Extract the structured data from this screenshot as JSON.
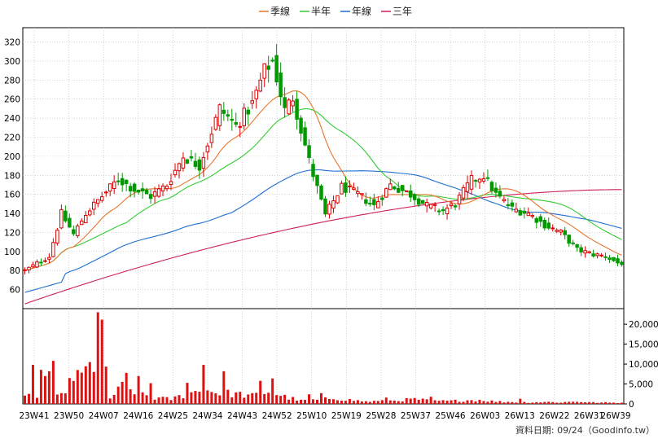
{
  "chart_data": {
    "type": "candlestick",
    "legend": {
      "placement": "top-center",
      "items": [
        {
          "name": "季線",
          "color": "#e8762c"
        },
        {
          "name": "半年",
          "color": "#33cc33"
        },
        {
          "name": "年線",
          "color": "#1f6fd1"
        },
        {
          "name": "三年",
          "color": "#cc1f5c"
        }
      ]
    },
    "price_axis": {
      "min": 40,
      "max": 335,
      "ticks": [
        60,
        80,
        100,
        120,
        140,
        160,
        180,
        200,
        220,
        240,
        260,
        280,
        300,
        320
      ]
    },
    "volume_axis": {
      "min": 0,
      "max": 23500,
      "ticks": [
        0,
        5000,
        10000,
        15000,
        20000
      ],
      "tick_labels": [
        "0",
        "5,000",
        "10,000",
        "15,000",
        "20,000"
      ]
    },
    "x_labels": [
      "23W41",
      "23W50",
      "24W07",
      "24W16",
      "24W25",
      "24W34",
      "24W43",
      "24W52",
      "25W10",
      "25W19",
      "25W28",
      "25W37",
      "25W46",
      "26W03",
      "26W13",
      "26W22",
      "26W31",
      "26W39"
    ],
    "grid": true,
    "up_color": "#dd0000",
    "down_color": "#009900",
    "close_anchors": [
      [
        0,
        80
      ],
      [
        6,
        95
      ],
      [
        9,
        140
      ],
      [
        12,
        118
      ],
      [
        15,
        140
      ],
      [
        19,
        158
      ],
      [
        23,
        176
      ],
      [
        27,
        165
      ],
      [
        31,
        158
      ],
      [
        35,
        170
      ],
      [
        39,
        200
      ],
      [
        43,
        190
      ],
      [
        48,
        250
      ],
      [
        52,
        232
      ],
      [
        56,
        255
      ],
      [
        59,
        290
      ],
      [
        61,
        300
      ],
      [
        64,
        248
      ],
      [
        66,
        262
      ],
      [
        70,
        195
      ],
      [
        74,
        138
      ],
      [
        78,
        168
      ],
      [
        82,
        160
      ],
      [
        86,
        148
      ],
      [
        90,
        170
      ],
      [
        95,
        160
      ],
      [
        99,
        148
      ],
      [
        103,
        143
      ],
      [
        106,
        150
      ],
      [
        110,
        175
      ],
      [
        113,
        180
      ],
      [
        116,
        160
      ],
      [
        120,
        145
      ],
      [
        124,
        140
      ],
      [
        128,
        128
      ],
      [
        132,
        120
      ],
      [
        136,
        102
      ],
      [
        140,
        97
      ],
      [
        143,
        95
      ],
      [
        146,
        88
      ]
    ],
    "volume_anchors": [
      [
        0,
        1500
      ],
      [
        3,
        2500
      ],
      [
        5,
        10000
      ],
      [
        8,
        1800
      ],
      [
        12,
        4200
      ],
      [
        15,
        8000
      ],
      [
        18,
        22500
      ],
      [
        21,
        1500
      ],
      [
        24,
        4200
      ],
      [
        28,
        3000
      ],
      [
        32,
        1500
      ],
      [
        36,
        1200
      ],
      [
        40,
        2500
      ],
      [
        44,
        3500
      ],
      [
        48,
        2800
      ],
      [
        52,
        2500
      ],
      [
        56,
        2000
      ],
      [
        60,
        3200
      ],
      [
        64,
        1800
      ],
      [
        68,
        800
      ],
      [
        72,
        1000
      ],
      [
        76,
        1500
      ],
      [
        80,
        1000
      ],
      [
        84,
        600
      ],
      [
        88,
        700
      ],
      [
        92,
        900
      ],
      [
        96,
        1200
      ],
      [
        100,
        800
      ],
      [
        104,
        700
      ],
      [
        108,
        900
      ],
      [
        112,
        1000
      ],
      [
        116,
        600
      ],
      [
        120,
        500
      ],
      [
        124,
        400
      ],
      [
        128,
        500
      ],
      [
        132,
        400
      ],
      [
        136,
        600
      ],
      [
        140,
        350
      ],
      [
        146,
        300
      ]
    ],
    "volume_spikes": [
      [
        2,
        9800
      ],
      [
        7,
        10800
      ],
      [
        11,
        6500
      ],
      [
        13,
        8500
      ],
      [
        16,
        10500
      ],
      [
        17,
        8000
      ],
      [
        18,
        23000
      ],
      [
        25,
        7800
      ],
      [
        28,
        7000
      ],
      [
        31,
        5200
      ],
      [
        40,
        5300
      ],
      [
        44,
        9800
      ],
      [
        49,
        8200
      ],
      [
        58,
        5800
      ],
      [
        61,
        6400
      ],
      [
        70,
        2400
      ],
      [
        73,
        2700
      ],
      [
        89,
        1600
      ],
      [
        100,
        1800
      ],
      [
        122,
        1300
      ]
    ]
  },
  "credit": "資料日期: 09/24（Goodinfo.tw）"
}
